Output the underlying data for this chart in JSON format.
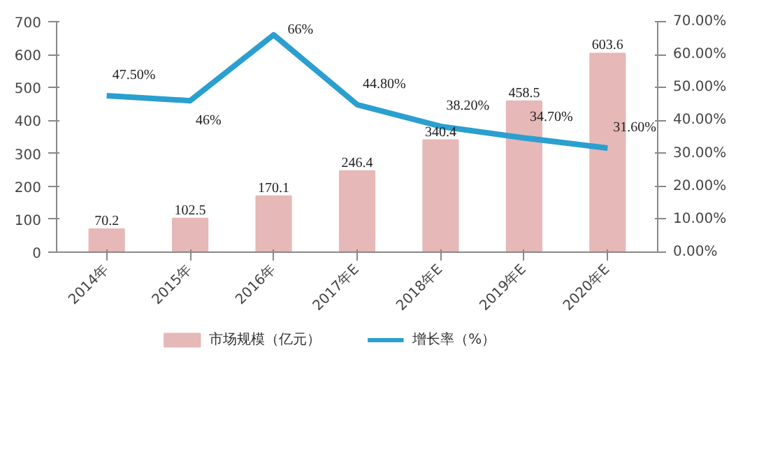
{
  "chart_data": {
    "type": "bar",
    "categories": [
      "2014年",
      "2015年",
      "2016年",
      "2017年E",
      "2018年E",
      "2019年E",
      "2020年E"
    ],
    "series": [
      {
        "name": "市场规模（亿元）",
        "type": "bar",
        "color": "#e6b8b7",
        "values": [
          70.2,
          102.5,
          170.1,
          246.4,
          340.4,
          458.5,
          603.6
        ],
        "value_labels": [
          "70.2",
          "102.5",
          "170.1",
          "246.4",
          "340.4",
          "458.5",
          "603.6"
        ]
      },
      {
        "name": "增长率（%）",
        "type": "line",
        "axis": "y2",
        "color": "#2a9fd0",
        "values": [
          47.5,
          46,
          66,
          44.8,
          38.2,
          34.7,
          31.6
        ],
        "value_labels": [
          "47.50%",
          "46%",
          "66%",
          "44.80%",
          "38.20%",
          "34.70%",
          "31.60%"
        ]
      }
    ],
    "ylim": [
      0,
      700
    ],
    "yticks": [
      0,
      100,
      200,
      300,
      400,
      500,
      600,
      700
    ],
    "y2lim": [
      0,
      70
    ],
    "y2ticks": [
      {
        "value": 0,
        "label": "0.00%"
      },
      {
        "value": 10,
        "label": "10.00%"
      },
      {
        "value": 20,
        "label": "20.00%"
      },
      {
        "value": 30,
        "label": "30.00%"
      },
      {
        "value": 40,
        "label": "40.00%"
      },
      {
        "value": 50,
        "label": "50.00%"
      },
      {
        "value": 60,
        "label": "60.00%"
      },
      {
        "value": 70,
        "label": "70.00%"
      }
    ],
    "legend": "bottom",
    "grid": false,
    "marker": "none",
    "line_style": "solid"
  }
}
